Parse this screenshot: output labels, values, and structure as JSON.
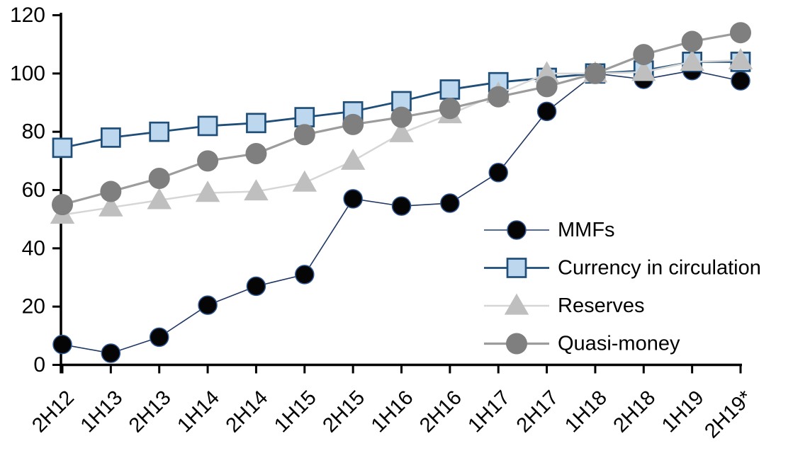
{
  "chart_data": {
    "type": "line",
    "title": "",
    "xlabel": "",
    "ylabel": "",
    "background": "#ffffff",
    "axis_color": "#000000",
    "grid": false,
    "legend_position": "inside-right",
    "y_axis": {
      "min": 0,
      "max": 120,
      "ticks": [
        0,
        20,
        40,
        60,
        80,
        100,
        120
      ]
    },
    "categories": [
      "2H12",
      "1H13",
      "2H13",
      "1H14",
      "2H14",
      "1H15",
      "2H15",
      "1H16",
      "2H16",
      "1H17",
      "2H17",
      "1H18",
      "2H18",
      "1H19",
      "2H19*"
    ],
    "series": [
      {
        "name": "MMFs",
        "marker": "circle",
        "marker_fill": "#050505",
        "marker_stroke": "#2e5693",
        "line_color": "#1f3864",
        "values": [
          7,
          4,
          9.5,
          20.5,
          27,
          31,
          57,
          54.5,
          55.5,
          66,
          87,
          100,
          98,
          101,
          97.5
        ]
      },
      {
        "name": "Currency in circulation",
        "marker": "square",
        "marker_fill": "#bdd7ee",
        "marker_stroke": "#1f4e79",
        "line_color": "#1f4e79",
        "values": [
          74.5,
          78,
          80,
          82,
          83,
          85,
          87,
          90.5,
          94.5,
          97,
          98.5,
          100,
          101,
          104,
          104
        ]
      },
      {
        "name": "Reserves",
        "marker": "triangle",
        "marker_fill": "#bfbfbf",
        "marker_stroke": "none",
        "line_color": "#d6d6d6",
        "values": [
          51.5,
          54,
          56.5,
          59,
          59.5,
          62.5,
          70,
          79.5,
          86,
          93,
          100,
          100,
          100.5,
          104,
          104.5
        ]
      },
      {
        "name": "Quasi-money",
        "marker": "circle",
        "marker_fill": "#7f7f7f",
        "marker_stroke": "none",
        "line_color": "#9c9c9c",
        "values": [
          55,
          59.5,
          64,
          70,
          72.5,
          79,
          82.5,
          85,
          88,
          92,
          95.5,
          100,
          106.5,
          111,
          114
        ]
      }
    ]
  }
}
